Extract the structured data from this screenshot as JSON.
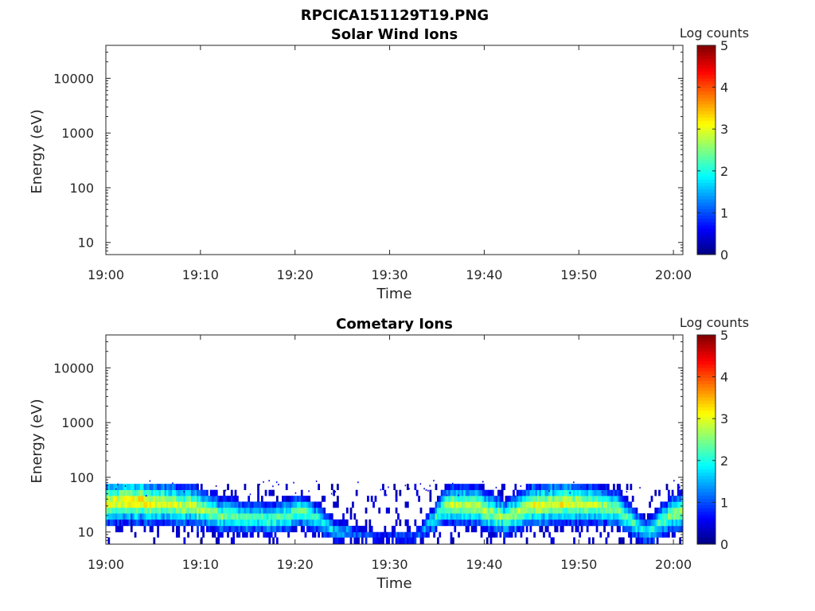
{
  "figure": {
    "file_title": "RPCICA151129T19.PNG"
  },
  "chart_data": [
    {
      "type": "heatmap",
      "title": "Solar Wind Ions",
      "xlabel": "Time",
      "ylabel": "Energy (eV)",
      "y_scale": "log",
      "ylim": [
        6,
        40000
      ],
      "xlim": [
        "19:00",
        "20:01"
      ],
      "x_tick_labels": [
        "19:00",
        "19:10",
        "19:20",
        "19:30",
        "19:40",
        "19:50",
        "20:00"
      ],
      "y_tick_labels": [
        "10",
        "100",
        "1000",
        "10000"
      ],
      "colorbar": {
        "label": "Log counts",
        "range": [
          0,
          5
        ],
        "tick_labels": [
          "0",
          "1",
          "2",
          "3",
          "4",
          "5"
        ],
        "colormap": "jet"
      },
      "rows": []
    },
    {
      "type": "heatmap",
      "title": "Cometary Ions",
      "xlabel": "Time",
      "ylabel": "Energy (eV)",
      "y_scale": "log",
      "ylim": [
        6,
        40000
      ],
      "xlim": [
        "19:00",
        "20:01"
      ],
      "x_tick_labels": [
        "19:00",
        "19:10",
        "19:20",
        "19:30",
        "19:40",
        "19:50",
        "20:00"
      ],
      "y_tick_labels": [
        "10",
        "100",
        "1000",
        "10000"
      ],
      "colorbar": {
        "label": "Log counts",
        "range": [
          0,
          5
        ],
        "tick_labels": [
          "0",
          "1",
          "2",
          "3",
          "4",
          "5"
        ],
        "colormap": "jet"
      },
      "energy_bins_eV": [
        6,
        8,
        10,
        13,
        17,
        22,
        28,
        36,
        46,
        59,
        76
      ],
      "peak_track": [
        {
          "time": "19:00",
          "energy_eV": 35,
          "log_counts": 3.2
        },
        {
          "time": "19:03",
          "energy_eV": 38,
          "log_counts": 3.4
        },
        {
          "time": "19:06",
          "energy_eV": 34,
          "log_counts": 3.1
        },
        {
          "time": "19:09",
          "energy_eV": 30,
          "log_counts": 3.0
        },
        {
          "time": "19:12",
          "energy_eV": 20,
          "log_counts": 2.6
        },
        {
          "time": "19:15",
          "energy_eV": 18,
          "log_counts": 2.4
        },
        {
          "time": "19:18",
          "energy_eV": 18,
          "log_counts": 2.4
        },
        {
          "time": "19:21",
          "energy_eV": 25,
          "log_counts": 2.5
        },
        {
          "time": "19:24",
          "energy_eV": 11,
          "log_counts": 1.8
        },
        {
          "time": "19:27",
          "energy_eV": 9,
          "log_counts": 1.1
        },
        {
          "time": "19:30",
          "energy_eV": 8,
          "log_counts": 1.0
        },
        {
          "time": "19:33",
          "energy_eV": 9,
          "log_counts": 1.2
        },
        {
          "time": "19:36",
          "energy_eV": 32,
          "log_counts": 2.9
        },
        {
          "time": "19:39",
          "energy_eV": 30,
          "log_counts": 3.0
        },
        {
          "time": "19:42",
          "energy_eV": 18,
          "log_counts": 2.7
        },
        {
          "time": "19:45",
          "energy_eV": 30,
          "log_counts": 3.1
        },
        {
          "time": "19:48",
          "energy_eV": 34,
          "log_counts": 3.2
        },
        {
          "time": "19:51",
          "energy_eV": 32,
          "log_counts": 3.0
        },
        {
          "time": "19:54",
          "energy_eV": 25,
          "log_counts": 2.7
        },
        {
          "time": "19:57",
          "energy_eV": 10,
          "log_counts": 2.0
        },
        {
          "time": "20:00",
          "energy_eV": 22,
          "log_counts": 2.8
        }
      ]
    }
  ]
}
